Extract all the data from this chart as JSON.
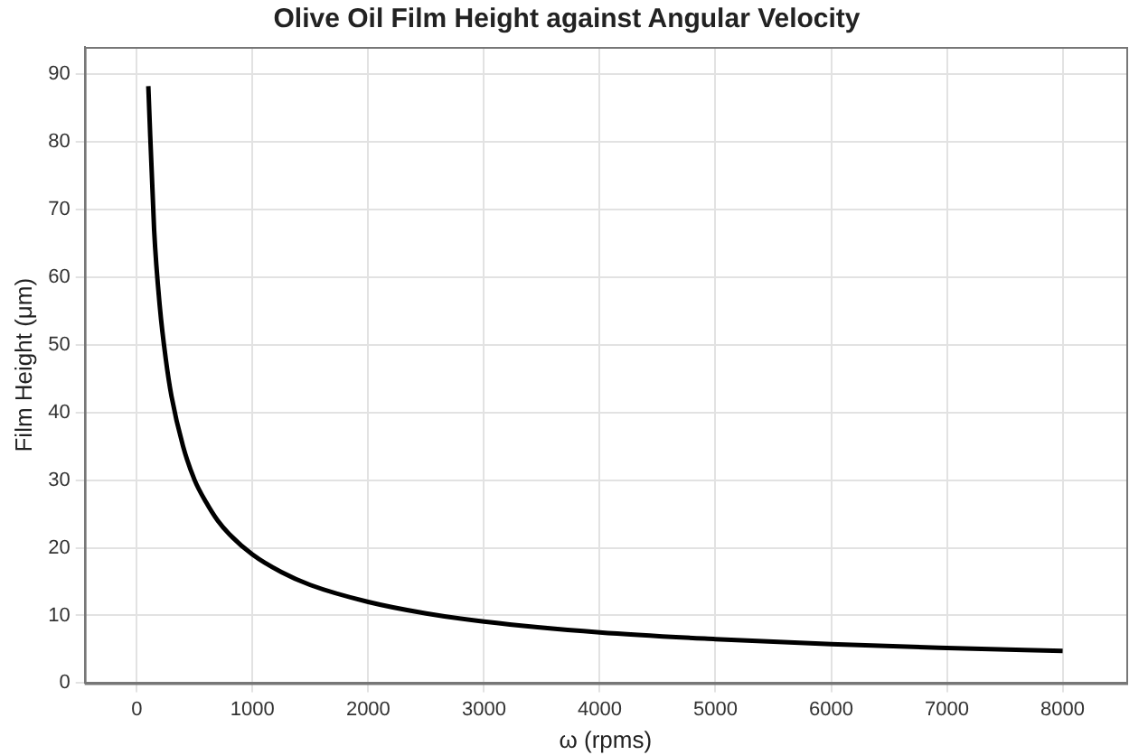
{
  "chart_data": {
    "type": "line",
    "title": "Olive Oil Film Height against Angular Velocity",
    "xlabel": "ω (rpms)",
    "ylabel": "Film Height (μm)",
    "series": [
      {
        "color": "#000000",
        "x": [
          100,
          150,
          200,
          250,
          300,
          400,
          500,
          600,
          700,
          800,
          1000,
          1250,
          1500,
          2000,
          2500,
          3000,
          4000,
          5000,
          6000,
          7000,
          8000
        ],
        "values": [
          88.2,
          67,
          55.5,
          48,
          42.4,
          35,
          30,
          26.7,
          24,
          22,
          19,
          16.4,
          14.5,
          12,
          10.3,
          9.1,
          7.5,
          6.5,
          5.75,
          5.2,
          4.75
        ]
      }
    ],
    "xlim": [
      -450,
      8550
    ],
    "xticks": [
      0,
      1000,
      2000,
      3000,
      4000,
      5000,
      6000,
      7000,
      8000
    ],
    "ylim": [
      0,
      94
    ],
    "yticks": [
      0,
      10,
      20,
      30,
      40,
      50,
      60,
      70,
      80,
      90
    ],
    "grid": true,
    "legend": false,
    "marker": "none",
    "line_style": "solid"
  }
}
